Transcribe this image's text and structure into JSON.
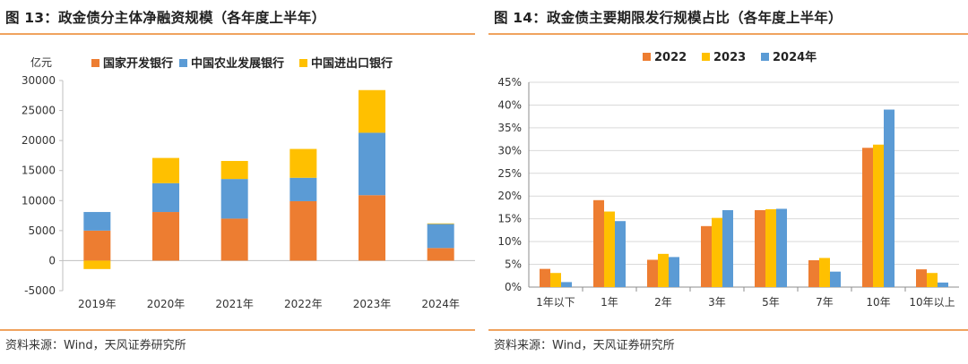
{
  "left": {
    "title": "图 13：政金债分主体净融资规模（各年度上半年）",
    "source": "资料来源：Wind，天风证券研究所",
    "unit_label": "亿元",
    "colors": {
      "cdb": "#ed7d31",
      "adbc": "#5b9bd5",
      "eximbank": "#ffc000"
    },
    "chart_data": {
      "type": "bar",
      "stacked": true,
      "categories": [
        "2019年",
        "2020年",
        "2021年",
        "2022年",
        "2023年",
        "2024年"
      ],
      "series": [
        {
          "name": "国家开发银行",
          "values": [
            5000,
            8100,
            7000,
            9900,
            10900,
            2100
          ]
        },
        {
          "name": "中国农业发展银行",
          "values": [
            3100,
            4800,
            6600,
            3900,
            10400,
            4000
          ]
        },
        {
          "name": "中国进出口银行",
          "values": [
            -1400,
            4200,
            3000,
            4800,
            7100,
            100
          ]
        }
      ],
      "ylim": [
        -5000,
        30000
      ],
      "yticks": [
        -5000,
        0,
        5000,
        10000,
        15000,
        20000,
        25000,
        30000
      ],
      "ylabel": "亿元",
      "legend": "top",
      "grid": false
    }
  },
  "right": {
    "title": "图 14：政金债主要期限发行规模占比（各年度上半年）",
    "source": "资料来源：Wind，天风证券研究所",
    "colors": {
      "y2022": "#ed7d31",
      "y2023": "#ffc000",
      "y2024": "#5b9bd5"
    },
    "chart_data": {
      "type": "bar",
      "stacked": false,
      "categories": [
        "1年以下",
        "1年",
        "2年",
        "3年",
        "5年",
        "7年",
        "10年",
        "10年以上"
      ],
      "series": [
        {
          "name": "2022",
          "values": [
            4.0,
            19.1,
            6.0,
            13.4,
            16.9,
            5.9,
            30.6,
            3.9
          ]
        },
        {
          "name": "2023",
          "values": [
            3.1,
            16.6,
            7.3,
            15.2,
            17.1,
            6.4,
            31.3,
            3.1
          ]
        },
        {
          "name": "2024年",
          "values": [
            1.1,
            14.5,
            6.6,
            16.9,
            17.2,
            3.4,
            39.0,
            1.0
          ]
        }
      ],
      "ylim": [
        0,
        45
      ],
      "yticks": [
        "0%",
        "5%",
        "10%",
        "15%",
        "20%",
        "25%",
        "30%",
        "35%",
        "40%",
        "45%"
      ],
      "legend": "top",
      "grid": true
    }
  }
}
